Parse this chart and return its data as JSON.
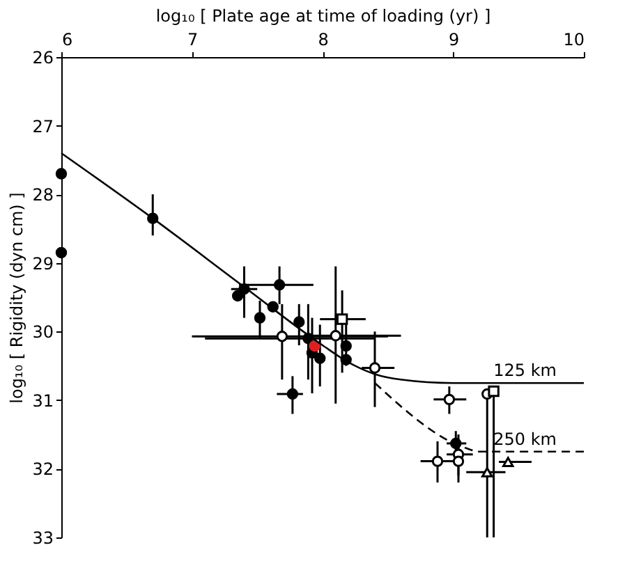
{
  "chart_data": {
    "type": "scatter",
    "xlabel": "log₁₀ [ Plate age at time of loading (yr) ]",
    "ylabel": "log₁₀ [ Rigidity (dyn cm) ]",
    "xlim": [
      6,
      10
    ],
    "xticks": [
      6,
      7,
      8,
      9,
      10
    ],
    "ylim": [
      33,
      26
    ],
    "yticks": [
      26,
      27,
      28,
      29,
      30,
      31,
      32,
      33
    ],
    "grid": false,
    "series": [
      {
        "marker": "circle",
        "color": "#000000",
        "x": [
          6,
          6,
          6.7,
          7.4,
          7.35,
          7.67,
          7.62,
          7.52,
          7.82,
          7.89,
          7.92,
          7.98,
          8.18,
          8.18,
          7.77,
          9.02
        ],
        "values": [
          27.7,
          28.85,
          28.35,
          29.38,
          29.48,
          29.32,
          29.64,
          29.8,
          29.86,
          30.1,
          30.31,
          30.39,
          30.21,
          30.41,
          30.91,
          31.63
        ],
        "errors": [
          null,
          null,
          [
            28.0,
            28.6
          ],
          [
            29.05,
            29.8
          ],
          null,
          [
            29.05,
            29.6
          ],
          null,
          [
            29.55,
            30.1
          ],
          [
            29.6,
            30.2
          ],
          [
            29.6,
            30.7
          ],
          [
            29.8,
            30.9
          ],
          [
            29.9,
            30.8
          ],
          [
            29.8,
            30.5
          ],
          null,
          [
            30.65,
            31.2
          ],
          [
            31.45,
            31.85
          ]
        ],
        "xerrors": [
          null,
          null,
          null,
          [
            7.3,
            7.5
          ],
          null,
          [
            7.36,
            7.93
          ],
          null,
          null,
          null,
          [
            7.1,
            8.4
          ],
          null,
          null,
          null,
          null,
          [
            7.65,
            7.85
          ],
          [
            8.95,
            9.1
          ]
        ]
      },
      {
        "marker": "circle",
        "color": "#000000",
        "colors": [
          "#ffffff",
          "#ffffff",
          "#ffffff",
          "#ffffff",
          "#ffffff",
          "#ffffff",
          "#ffffff",
          "#ffffff"
        ],
        "x": [
          7.69,
          8.1,
          8.4,
          8.97,
          9.26,
          9.04,
          8.88,
          9.04
        ],
        "values": [
          30.07,
          30.06,
          30.53,
          30.99,
          30.91,
          31.79,
          31.89,
          31.89
        ],
        "errors": [
          [
            29.6,
            30.7
          ],
          [
            29.05,
            31.05
          ],
          [
            30.0,
            31.1
          ],
          [
            30.8,
            31.2
          ],
          [
            30.91,
            33
          ],
          [
            31.5,
            32.1
          ],
          [
            31.6,
            32.2
          ],
          [
            31.6,
            32.2
          ]
        ],
        "xerrors": [
          [
            7.0,
            8.5
          ],
          [
            7.9,
            8.6
          ],
          [
            8.3,
            8.55
          ],
          [
            8.85,
            9.1
          ],
          null,
          [
            8.95,
            9.15
          ],
          [
            8.75,
            9.0
          ],
          null
        ]
      },
      {
        "marker": "square",
        "color": "#000000",
        "colors": [
          "#ffffff",
          "#ffffff"
        ],
        "x": [
          8.15,
          9.31
        ],
        "values": [
          29.82,
          30.87
        ],
        "errors": [
          [
            29.4,
            30.6
          ],
          [
            30.87,
            33
          ]
        ],
        "xerrors": [
          [
            7.98,
            8.33
          ],
          null
        ]
      },
      {
        "marker": "triangle",
        "color": "#000000",
        "colors": [
          "#ffffff",
          "#ffffff"
        ],
        "x": [
          9.26,
          9.42
        ],
        "values": [
          32.05,
          31.9
        ],
        "xerrors": [
          [
            9.1,
            9.4
          ],
          [
            9.35,
            9.6
          ]
        ]
      },
      {
        "marker": "circle",
        "color": "#e02020",
        "x": [
          7.94
        ],
        "values": [
          30.21
        ]
      },
      {
        "type": "line",
        "marker": "none",
        "line_style": "solid",
        "color": "#000000",
        "x": [
          6,
          6.7,
          7.4,
          8.0,
          8.2,
          8.4,
          8.6,
          9.0,
          10
        ],
        "values": [
          27.4,
          28.35,
          29.35,
          30.2,
          30.45,
          30.62,
          30.7,
          30.75,
          30.75
        ]
      },
      {
        "type": "line",
        "marker": "none",
        "line_style": "dashed",
        "color": "#000000",
        "x": [
          8.4,
          9.1,
          9.2,
          10
        ],
        "values": [
          30.75,
          31.7,
          31.75,
          31.75
        ]
      }
    ],
    "annotations": [
      {
        "text": "125 km",
        "x": 9.55,
        "y": 30.75
      },
      {
        "text": "250 km",
        "x": 9.55,
        "y": 31.75
      }
    ]
  }
}
